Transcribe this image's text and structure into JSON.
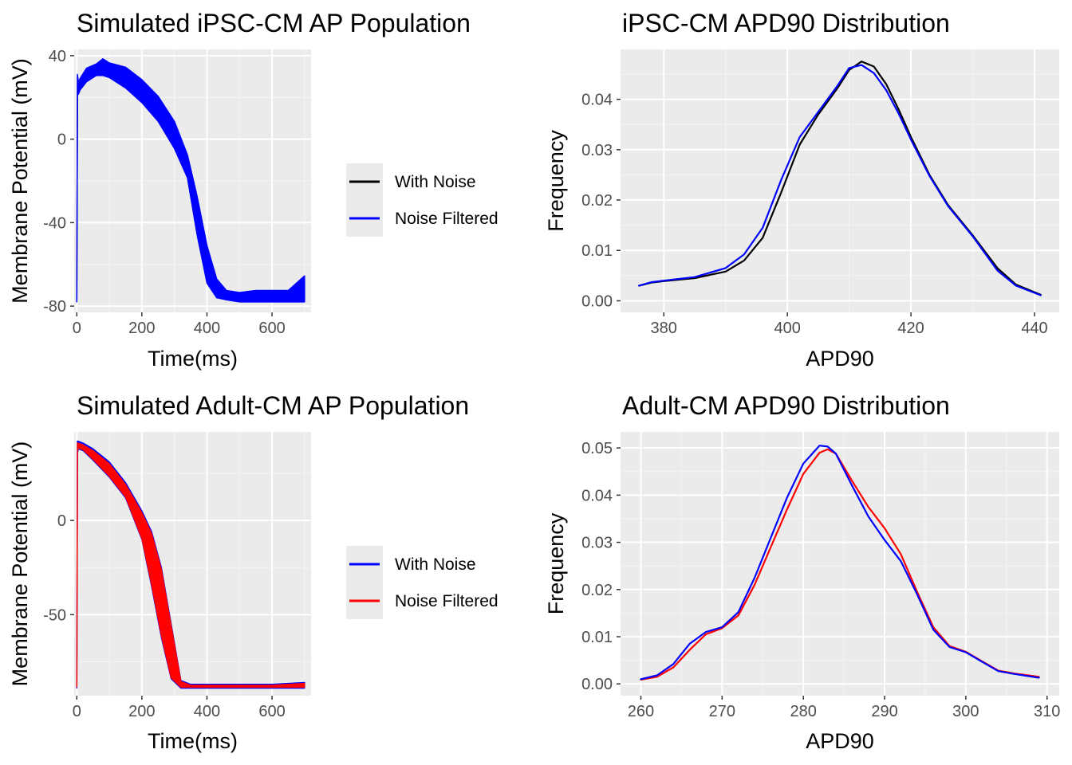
{
  "chart_data": [
    {
      "type": "line",
      "title": "Simulated iPSC-CM AP Population",
      "xlabel": "Time(ms)",
      "ylabel": "Membrane Potential (mV)",
      "xlim": [
        -8,
        720
      ],
      "ylim": [
        -83,
        43
      ],
      "xticks": [
        0,
        200,
        400,
        600
      ],
      "yticks": [
        -80,
        -40,
        0,
        40
      ],
      "legend": {
        "position": "right",
        "entries": [
          "With Noise",
          "Noise Filtered"
        ]
      },
      "series": [
        {
          "name": "With Noise",
          "color": "#000000",
          "band": true,
          "x": [
            0,
            2,
            5,
            10,
            30,
            60,
            80,
            100,
            150,
            200,
            250,
            300,
            340,
            370,
            400,
            430,
            460,
            500,
            550,
            600,
            650,
            700
          ],
          "y_upper": [
            -77,
            30,
            26,
            28,
            33,
            35,
            38,
            36,
            34,
            28,
            20,
            8,
            -8,
            -28,
            -52,
            -68,
            -73,
            -74,
            -73,
            -73,
            -73,
            -66
          ],
          "y_lower": [
            -77,
            23,
            22,
            24,
            28,
            31,
            31,
            30,
            25,
            18,
            9,
            -4,
            -18,
            -45,
            -68,
            -75,
            -76,
            -77,
            -77,
            -77,
            -77,
            -77
          ]
        },
        {
          "name": "Noise Filtered",
          "color": "#0000ff",
          "band": true,
          "x": [
            0,
            2,
            5,
            10,
            30,
            60,
            80,
            100,
            150,
            200,
            250,
            300,
            340,
            370,
            400,
            430,
            460,
            500,
            550,
            600,
            650,
            700
          ],
          "y_upper": [
            -78,
            31,
            27,
            29,
            34,
            36,
            38.5,
            36.5,
            34.5,
            28.5,
            20.5,
            8.5,
            -7.5,
            -27.5,
            -51,
            -67,
            -72.5,
            -73.5,
            -72.5,
            -72.5,
            -72.5,
            -65.5
          ],
          "y_lower": [
            -78,
            22.5,
            21.5,
            23.5,
            27.5,
            30.5,
            30.5,
            29.5,
            24.5,
            17.5,
            8.5,
            -4.5,
            -18.5,
            -46,
            -69,
            -76,
            -77,
            -78,
            -78,
            -78,
            -78,
            -78
          ]
        }
      ]
    },
    {
      "type": "line",
      "title": "iPSC-CM APD90 Distribution",
      "xlabel": "APD90",
      "ylabel": "Frequency",
      "xlim": [
        373,
        444
      ],
      "ylim": [
        -0.0023,
        0.0499
      ],
      "xticks": [
        380,
        400,
        420,
        440
      ],
      "yticks": [
        0.0,
        0.01,
        0.02,
        0.03,
        0.04
      ],
      "ytick_labels": [
        "0.00",
        "0.01",
        "0.02",
        "0.03",
        "0.04"
      ],
      "series": [
        {
          "name": "",
          "color": "#000000",
          "x": [
            376,
            378,
            380,
            385,
            390,
            393,
            396,
            399,
            402,
            405,
            408,
            410,
            412,
            414,
            416,
            418,
            420,
            423,
            426,
            430,
            434,
            437,
            441
          ],
          "y": [
            0.003,
            0.0036,
            0.0039,
            0.0045,
            0.0058,
            0.008,
            0.0125,
            0.0215,
            0.031,
            0.037,
            0.042,
            0.0458,
            0.0475,
            0.0465,
            0.043,
            0.038,
            0.0325,
            0.025,
            0.019,
            0.013,
            0.0065,
            0.0032,
            0.0012
          ]
        },
        {
          "name": "",
          "color": "#0000ff",
          "x": [
            376,
            378,
            380,
            385,
            390,
            393,
            396,
            399,
            402,
            405,
            408,
            410,
            412,
            414,
            416,
            418,
            420,
            423,
            426,
            430,
            434,
            437,
            441
          ],
          "y": [
            0.003,
            0.0037,
            0.004,
            0.0047,
            0.0065,
            0.0092,
            0.0145,
            0.024,
            0.0325,
            0.0375,
            0.0425,
            0.0462,
            0.0468,
            0.0452,
            0.0418,
            0.0372,
            0.032,
            0.0248,
            0.0188,
            0.0128,
            0.006,
            0.003,
            0.0011
          ]
        }
      ]
    },
    {
      "type": "line",
      "title": "Simulated Adult-CM AP Population",
      "xlabel": "Time(ms)",
      "ylabel": "Membrane Potential (mV)",
      "xlim": [
        -8,
        720
      ],
      "ylim": [
        -93,
        47
      ],
      "xticks": [
        0,
        200,
        400,
        600
      ],
      "yticks": [
        -50,
        0
      ],
      "legend": {
        "position": "right",
        "entries": [
          "With Noise",
          "Noise Filtered"
        ]
      },
      "series": [
        {
          "name": "With Noise",
          "color": "#0000ff",
          "band": true,
          "x": [
            0,
            2,
            5,
            20,
            50,
            100,
            150,
            200,
            230,
            260,
            290,
            320,
            350,
            400,
            500,
            600,
            700
          ],
          "y_upper": [
            -89,
            42,
            42,
            41,
            38,
            31,
            20,
            5,
            -6,
            -25,
            -55,
            -85,
            -87,
            -87,
            -87,
            -87,
            -86
          ],
          "y_lower": [
            -89,
            36,
            38,
            37,
            32,
            23,
            12,
            -10,
            -35,
            -62,
            -84,
            -89,
            -89,
            -89,
            -89,
            -89,
            -89
          ]
        },
        {
          "name": "Noise Filtered",
          "color": "#ff0000",
          "band": true,
          "x": [
            0,
            2,
            5,
            20,
            50,
            100,
            150,
            200,
            230,
            260,
            290,
            320,
            350,
            400,
            500,
            600,
            700
          ],
          "y_upper": [
            -88.5,
            41,
            41,
            40,
            37,
            30,
            19,
            4,
            -7,
            -26,
            -56,
            -85.5,
            -87.5,
            -87.5,
            -87.5,
            -87.5,
            -86.5
          ],
          "y_lower": [
            -88.5,
            37,
            38.5,
            37.5,
            32.5,
            23.5,
            12.5,
            -9.5,
            -34,
            -61,
            -83.5,
            -88.5,
            -88.5,
            -88.5,
            -88.5,
            -88.5,
            -88.5
          ]
        }
      ]
    },
    {
      "type": "line",
      "title": "Adult-CM APD90 Distribution",
      "xlabel": "APD90",
      "ylabel": "Frequency",
      "xlim": [
        257.5,
        311.5
      ],
      "ylim": [
        -0.0025,
        0.0534
      ],
      "xticks": [
        260,
        270,
        280,
        290,
        300,
        310
      ],
      "yticks": [
        0.0,
        0.01,
        0.02,
        0.03,
        0.04,
        0.05
      ],
      "ytick_labels": [
        "0.00",
        "0.01",
        "0.02",
        "0.03",
        "0.04",
        "0.05"
      ],
      "series": [
        {
          "name": "",
          "color": "#ff0000",
          "x": [
            260,
            262,
            264,
            266,
            268,
            270,
            272,
            274,
            276,
            278,
            280,
            282,
            283,
            284,
            286,
            288,
            290,
            292,
            294,
            296,
            298,
            300,
            302,
            304,
            306,
            309
          ],
          "y": [
            0.0009,
            0.0015,
            0.0035,
            0.0072,
            0.0105,
            0.0118,
            0.0145,
            0.021,
            0.029,
            0.037,
            0.0445,
            0.049,
            0.0497,
            0.0488,
            0.043,
            0.0375,
            0.033,
            0.0275,
            0.0195,
            0.012,
            0.008,
            0.0068,
            0.0048,
            0.0028,
            0.0022,
            0.0015
          ]
        },
        {
          "name": "",
          "color": "#0000ff",
          "x": [
            260,
            262,
            264,
            266,
            268,
            270,
            272,
            274,
            276,
            278,
            280,
            282,
            283,
            284,
            286,
            288,
            290,
            292,
            294,
            296,
            298,
            300,
            302,
            304,
            306,
            309
          ],
          "y": [
            0.001,
            0.0018,
            0.0042,
            0.0085,
            0.011,
            0.012,
            0.0152,
            0.0225,
            0.031,
            0.0395,
            0.0467,
            0.0505,
            0.0503,
            0.0488,
            0.042,
            0.0355,
            0.0305,
            0.026,
            0.019,
            0.0115,
            0.0078,
            0.0067,
            0.0047,
            0.0027,
            0.0021,
            0.0013
          ]
        }
      ]
    }
  ]
}
